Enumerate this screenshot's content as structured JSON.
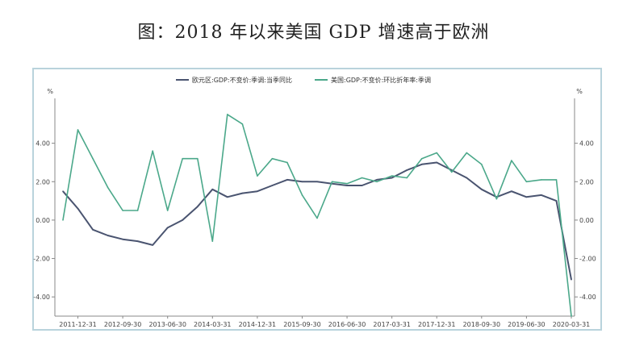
{
  "page": {
    "title": "图：2018 年以来美国 GDP 增速高于欧洲"
  },
  "chart_data": {
    "type": "line",
    "title": "图：2018 年以来美国 GDP 增速高于欧洲",
    "left_unit": "%",
    "right_unit": "%",
    "ylim": [
      -5,
      6
    ],
    "y_ticks": [
      -4,
      -2,
      0,
      2,
      4
    ],
    "y_tick_labels": [
      "-4.00",
      "-2.00",
      "0.00",
      "2.00",
      "4.00"
    ],
    "x_tick_labels": [
      "2011-12-31",
      "2012-09-30",
      "2013-06-30",
      "2014-03-31",
      "2014-12-31",
      "2015-09-30",
      "2016-06-30",
      "2017-03-31",
      "2017-12-31",
      "2018-09-30",
      "2019-06-30",
      "2020-03-31"
    ],
    "x_tick_index": [
      1,
      4,
      7,
      10,
      13,
      16,
      19,
      22,
      25,
      28,
      31,
      34
    ],
    "x": [
      "2011-09-30",
      "2011-12-31",
      "2012-03-31",
      "2012-06-30",
      "2012-09-30",
      "2012-12-31",
      "2013-03-31",
      "2013-06-30",
      "2013-09-30",
      "2013-12-31",
      "2014-03-31",
      "2014-06-30",
      "2014-09-30",
      "2014-12-31",
      "2015-03-31",
      "2015-06-30",
      "2015-09-30",
      "2015-12-31",
      "2016-03-31",
      "2016-06-30",
      "2016-09-30",
      "2016-12-31",
      "2017-03-31",
      "2017-06-30",
      "2017-09-30",
      "2017-12-31",
      "2018-03-31",
      "2018-06-30",
      "2018-09-30",
      "2018-12-31",
      "2019-03-31",
      "2019-06-30",
      "2019-09-30",
      "2019-12-31",
      "2020-03-31"
    ],
    "legend_position": "top",
    "grid": false,
    "series": [
      {
        "name": "欧元区:GDP:不变价:季调:当季同比",
        "color": "#4a5470",
        "values": [
          1.5,
          0.6,
          -0.5,
          -0.8,
          -1.0,
          -1.1,
          -1.3,
          -0.4,
          0.0,
          0.7,
          1.6,
          1.2,
          1.4,
          1.5,
          1.8,
          2.1,
          2.0,
          2.0,
          1.9,
          1.8,
          1.8,
          2.1,
          2.2,
          2.6,
          2.9,
          3.0,
          2.6,
          2.2,
          1.6,
          1.2,
          1.5,
          1.2,
          1.3,
          1.0,
          -3.1
        ]
      },
      {
        "name": "美国:GDP:不变价:环比折年率:季调",
        "color": "#4ba88a",
        "values": [
          0.0,
          4.7,
          3.2,
          1.7,
          0.5,
          0.5,
          3.6,
          0.5,
          3.2,
          3.2,
          -1.1,
          5.5,
          5.0,
          2.3,
          3.2,
          3.0,
          1.3,
          0.1,
          2.0,
          1.9,
          2.2,
          2.0,
          2.3,
          2.2,
          3.2,
          3.5,
          2.5,
          3.5,
          2.9,
          1.1,
          3.1,
          2.0,
          2.1,
          2.1,
          -5.0
        ]
      }
    ]
  }
}
